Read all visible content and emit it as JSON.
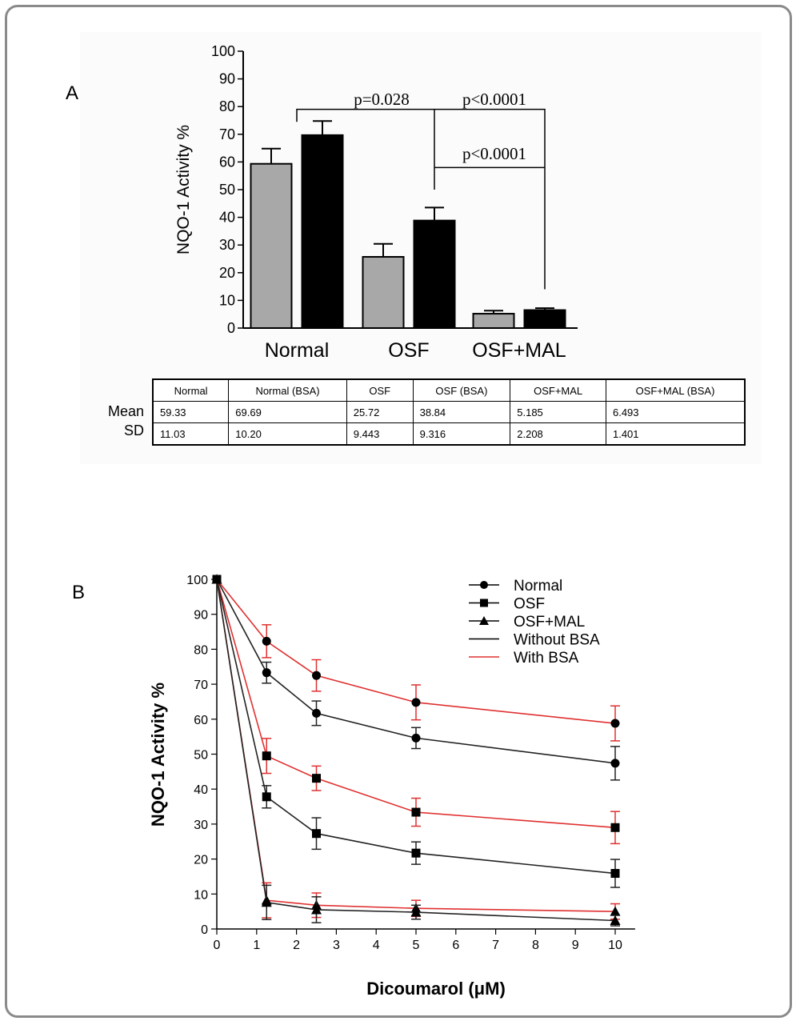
{
  "chart_data": [
    {
      "panel_label": "A",
      "type": "bar",
      "ylabel": "NQO-1 Activity %",
      "ylim": [
        0,
        100
      ],
      "yticks": [
        0,
        10,
        20,
        30,
        40,
        50,
        60,
        70,
        80,
        90,
        100
      ],
      "categories": [
        "Normal",
        "OSF",
        "OSF+MAL"
      ],
      "series": [
        {
          "key": "without_bsa",
          "values": [
            59.33,
            25.72,
            5.185
          ],
          "errors": [
            5.5,
            4.7,
            1.1
          ],
          "color": "#a8a8a8"
        },
        {
          "key": "with_bsa",
          "values": [
            69.69,
            38.84,
            6.493
          ],
          "errors": [
            5.1,
            4.7,
            0.7
          ],
          "color": "#000000"
        }
      ],
      "annotations": [
        {
          "text": "p=0.028"
        },
        {
          "text": "p<0.0001"
        },
        {
          "text": "p<0.0001"
        }
      ],
      "table": {
        "headers": [
          "Normal",
          "Normal (BSA)",
          "OSF",
          "OSF (BSA)",
          "OSF+MAL",
          "OSF+MAL (BSA)"
        ],
        "rows": [
          {
            "label": "Mean",
            "values": [
              "59.33",
              "69.69",
              "25.72",
              "38.84",
              "5.185",
              "6.493"
            ]
          },
          {
            "label": "SD",
            "values": [
              "11.03",
              "10.20",
              "9.443",
              "9.316",
              "2.208",
              "1.401"
            ]
          }
        ]
      }
    },
    {
      "panel_label": "B",
      "type": "line",
      "xlabel": "Dicoumarol (μM)",
      "ylabel": "NQO-1 Activity %",
      "xlim": [
        0,
        10.5
      ],
      "ylim": [
        0,
        100
      ],
      "xticks": [
        0,
        1,
        2,
        3,
        4,
        5,
        6,
        7,
        8,
        9,
        10
      ],
      "yticks": [
        0,
        10,
        20,
        30,
        40,
        50,
        60,
        70,
        80,
        90,
        100
      ],
      "x": [
        0,
        1.25,
        2.5,
        5,
        10
      ],
      "legend": {
        "position": "top-right",
        "entries": [
          {
            "label": "Normal",
            "marker": "circle"
          },
          {
            "label": "OSF",
            "marker": "square"
          },
          {
            "label": "OSF+MAL",
            "marker": "triangle"
          },
          {
            "label": "Without BSA",
            "color": "#000000"
          },
          {
            "label": "With BSA",
            "color": "#e03030"
          }
        ]
      },
      "series": [
        {
          "group": "Normal",
          "bsa": true,
          "marker": "circle",
          "color": "#e03030",
          "y": [
            100,
            82.3,
            72.5,
            64.8,
            58.8
          ],
          "err": [
            0,
            4.7,
            4.5,
            5,
            5
          ]
        },
        {
          "group": "Normal",
          "bsa": false,
          "marker": "circle",
          "color": "#222222",
          "y": [
            100,
            73.3,
            61.7,
            54.6,
            47.4
          ],
          "err": [
            0,
            3,
            3.5,
            3,
            4.8
          ]
        },
        {
          "group": "OSF",
          "bsa": true,
          "marker": "square",
          "color": "#e03030",
          "y": [
            100,
            49.5,
            43.1,
            33.4,
            29
          ],
          "err": [
            0,
            5,
            3.5,
            4,
            4.6
          ]
        },
        {
          "group": "OSF",
          "bsa": false,
          "marker": "square",
          "color": "#222222",
          "y": [
            100,
            37.8,
            27.3,
            21.7,
            15.9
          ],
          "err": [
            0,
            3.2,
            4.5,
            3.2,
            4
          ]
        },
        {
          "group": "OSF+MAL",
          "bsa": true,
          "marker": "triangle",
          "color": "#e03030",
          "y": [
            100,
            8.2,
            6.8,
            5.9,
            5
          ],
          "err": [
            0,
            5,
            3.5,
            2.3,
            2.2
          ]
        },
        {
          "group": "OSF+MAL",
          "bsa": false,
          "marker": "triangle",
          "color": "#222222",
          "y": [
            100,
            7.6,
            5.5,
            4.8,
            2.4
          ],
          "err": [
            0,
            4.9,
            3.7,
            2,
            1.5
          ]
        }
      ]
    }
  ]
}
